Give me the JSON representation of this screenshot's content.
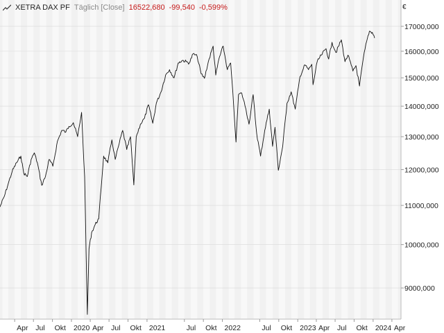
{
  "header": {
    "instrument": "XETRA DAX PF",
    "period_label": "Täglich [Close]",
    "last_value": "16522,680",
    "change_abs": "-99,540",
    "change_pct": "-0,599%",
    "trend_icon": "line-chart-icon"
  },
  "currency_symbol": "€",
  "colors": {
    "line": "#111111",
    "negative": "#c61a1a",
    "band_a": "#f1f1f1",
    "band_b": "#f8f8f8",
    "grid": "#d8d8d8"
  },
  "chart_data": {
    "type": "line",
    "y_scale": "log",
    "ylim": [
      8400,
      17700
    ],
    "y_ticks": [
      {
        "value": 9000,
        "label": "9000,000"
      },
      {
        "value": 10000,
        "label": "10000,000"
      },
      {
        "value": 11000,
        "label": "11000,000"
      },
      {
        "value": 12000,
        "label": "12000,000"
      },
      {
        "value": 13000,
        "label": "13000,000"
      },
      {
        "value": 14000,
        "label": "14000,000"
      },
      {
        "value": 15000,
        "label": "15000,000"
      },
      {
        "value": 16000,
        "label": "16000,000"
      },
      {
        "value": 17000,
        "label": "17000,000"
      }
    ],
    "xlim": [
      "2019-01-20",
      "2024-05-15"
    ],
    "x_ticks": [
      {
        "date": "2019-04-01",
        "label": "Apr"
      },
      {
        "date": "2019-07-01",
        "label": "Jul"
      },
      {
        "date": "2019-10-01",
        "label": "Okt"
      },
      {
        "date": "2020-01-01",
        "label": "2020"
      },
      {
        "date": "2020-04-01",
        "label": "Apr"
      },
      {
        "date": "2020-07-01",
        "label": "Jul"
      },
      {
        "date": "2020-10-01",
        "label": "Okt"
      },
      {
        "date": "2021-01-01",
        "label": "2021"
      },
      {
        "date": "2021-07-01",
        "label": "Jul"
      },
      {
        "date": "2021-10-01",
        "label": "Okt"
      },
      {
        "date": "2022-01-01",
        "label": "2022"
      },
      {
        "date": "2022-07-01",
        "label": "Jul"
      },
      {
        "date": "2022-10-01",
        "label": "Okt"
      },
      {
        "date": "2023-01-01",
        "label": "2023"
      },
      {
        "date": "2023-04-01",
        "label": "Apr"
      },
      {
        "date": "2023-07-01",
        "label": "Jul"
      },
      {
        "date": "2023-10-01",
        "label": "Okt"
      },
      {
        "date": "2024-01-01",
        "label": "2024"
      },
      {
        "date": "2024-04-01",
        "label": "Apr"
      }
    ],
    "series": [
      {
        "points": [
          [
            "2019-01-20",
            10960
          ],
          [
            "2019-02-10",
            11250
          ],
          [
            "2019-03-01",
            11600
          ],
          [
            "2019-03-20",
            11950
          ],
          [
            "2019-04-10",
            12200
          ],
          [
            "2019-05-01",
            12400
          ],
          [
            "2019-05-15",
            11900
          ],
          [
            "2019-06-01",
            11800
          ],
          [
            "2019-06-20",
            12300
          ],
          [
            "2019-07-05",
            12500
          ],
          [
            "2019-07-20",
            12200
          ],
          [
            "2019-08-10",
            11550
          ],
          [
            "2019-08-28",
            11800
          ],
          [
            "2019-09-15",
            12300
          ],
          [
            "2019-10-03",
            12100
          ],
          [
            "2019-10-25",
            12850
          ],
          [
            "2019-11-15",
            13200
          ],
          [
            "2019-12-05",
            13150
          ],
          [
            "2019-12-20",
            13330
          ],
          [
            "2020-01-10",
            13450
          ],
          [
            "2020-01-31",
            13000
          ],
          [
            "2020-02-19",
            13790
          ],
          [
            "2020-02-26",
            12800
          ],
          [
            "2020-03-05",
            11800
          ],
          [
            "2020-03-12",
            9800
          ],
          [
            "2020-03-18",
            8440
          ],
          [
            "2020-03-26",
            9900
          ],
          [
            "2020-04-08",
            10300
          ],
          [
            "2020-04-25",
            10500
          ],
          [
            "2020-05-12",
            10650
          ],
          [
            "2020-06-05",
            12400
          ],
          [
            "2020-06-25",
            12200
          ],
          [
            "2020-07-15",
            12900
          ],
          [
            "2020-07-31",
            12300
          ],
          [
            "2020-08-20",
            12800
          ],
          [
            "2020-09-05",
            13200
          ],
          [
            "2020-09-25",
            12600
          ],
          [
            "2020-10-13",
            13000
          ],
          [
            "2020-10-29",
            11560
          ],
          [
            "2020-11-10",
            13000
          ],
          [
            "2020-11-30",
            13400
          ],
          [
            "2020-12-20",
            13600
          ],
          [
            "2021-01-08",
            14050
          ],
          [
            "2021-01-29",
            13430
          ],
          [
            "2021-02-15",
            14100
          ],
          [
            "2021-03-10",
            14500
          ],
          [
            "2021-04-01",
            15100
          ],
          [
            "2021-04-20",
            15300
          ],
          [
            "2021-05-12",
            15000
          ],
          [
            "2021-06-01",
            15550
          ],
          [
            "2021-06-22",
            15650
          ],
          [
            "2021-07-10",
            15600
          ],
          [
            "2021-07-25",
            15550
          ],
          [
            "2021-08-12",
            15900
          ],
          [
            "2021-09-01",
            15800
          ],
          [
            "2021-09-20",
            15150
          ],
          [
            "2021-10-06",
            14980
          ],
          [
            "2021-10-25",
            15600
          ],
          [
            "2021-11-17",
            16200
          ],
          [
            "2021-11-30",
            15100
          ],
          [
            "2021-12-15",
            15700
          ],
          [
            "2022-01-05",
            16200
          ],
          [
            "2022-01-25",
            15300
          ],
          [
            "2022-02-10",
            15550
          ],
          [
            "2022-02-24",
            14100
          ],
          [
            "2022-03-08",
            12830
          ],
          [
            "2022-03-20",
            14400
          ],
          [
            "2022-04-05",
            14450
          ],
          [
            "2022-04-25",
            13900
          ],
          [
            "2022-05-10",
            13400
          ],
          [
            "2022-05-30",
            14400
          ],
          [
            "2022-06-16",
            13100
          ],
          [
            "2022-07-05",
            12400
          ],
          [
            "2022-07-25",
            13200
          ],
          [
            "2022-08-16",
            13900
          ],
          [
            "2022-09-01",
            12700
          ],
          [
            "2022-09-13",
            13300
          ],
          [
            "2022-09-29",
            11980
          ],
          [
            "2022-10-20",
            12700
          ],
          [
            "2022-11-10",
            14100
          ],
          [
            "2022-11-30",
            14500
          ],
          [
            "2022-12-20",
            13900
          ],
          [
            "2023-01-12",
            15050
          ],
          [
            "2023-02-05",
            15480
          ],
          [
            "2023-02-22",
            15300
          ],
          [
            "2023-03-10",
            15500
          ],
          [
            "2023-03-16",
            14750
          ],
          [
            "2023-04-05",
            15600
          ],
          [
            "2023-04-25",
            15850
          ],
          [
            "2023-05-18",
            16100
          ],
          [
            "2023-05-31",
            15700
          ],
          [
            "2023-06-16",
            16350
          ],
          [
            "2023-07-05",
            15950
          ],
          [
            "2023-07-31",
            16450
          ],
          [
            "2023-08-18",
            15600
          ],
          [
            "2023-09-01",
            15850
          ],
          [
            "2023-09-25",
            15250
          ],
          [
            "2023-10-10",
            15450
          ],
          [
            "2023-10-27",
            14700
          ],
          [
            "2023-11-15",
            15750
          ],
          [
            "2023-12-01",
            16400
          ],
          [
            "2023-12-14",
            16800
          ],
          [
            "2023-12-28",
            16750
          ],
          [
            "2024-01-05",
            16620
          ],
          [
            "2024-01-08",
            16522
          ]
        ]
      }
    ]
  }
}
